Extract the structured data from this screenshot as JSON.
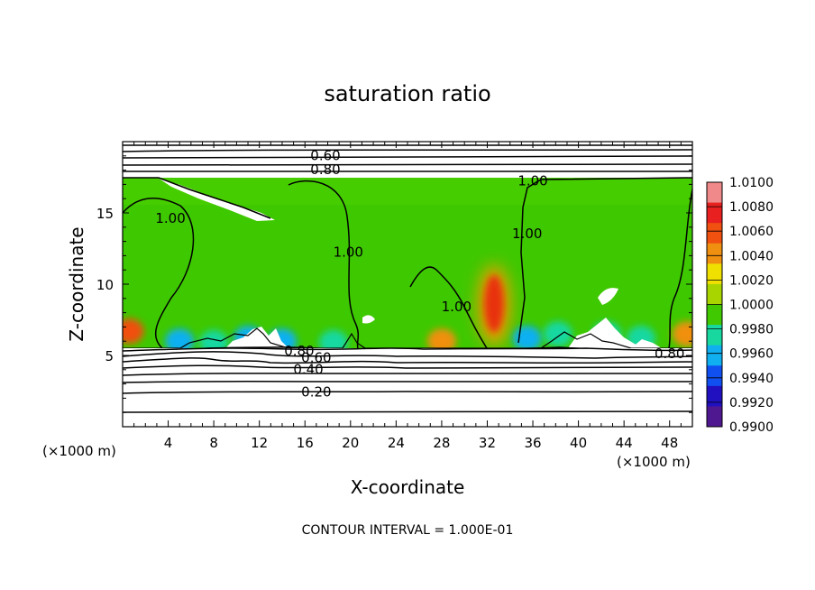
{
  "chart_data": {
    "type": "heatmap",
    "title": "saturation ratio",
    "xlabel": "X-coordinate",
    "ylabel": "Z-coordinate",
    "x_unit": "(×1000 m)",
    "z_unit": "(×1000 m)",
    "xlim": [
      0,
      50
    ],
    "ylim": [
      0,
      20
    ],
    "x_ticks": [
      4,
      8,
      12,
      16,
      20,
      24,
      28,
      32,
      36,
      40,
      44,
      48
    ],
    "y_ticks": [
      5,
      10,
      15
    ],
    "note": "CONTOUR INTERVAL = 1.000E-01",
    "colorbar": {
      "levels": [
        "1.0100",
        "1.0080",
        "1.0060",
        "1.0040",
        "1.0020",
        "1.0000",
        "0.9980",
        "0.9960",
        "0.9940",
        "0.9920",
        "0.9900"
      ],
      "colors": [
        "#f08a8a",
        "#e82020",
        "#f05010",
        "#f09010",
        "#f0e000",
        "#a8d400",
        "#40c800",
        "#18d8a0",
        "#10b0f0",
        "#1050f0",
        "#2010c0",
        "#501890"
      ]
    },
    "contour_labels": [
      {
        "text": "0.60",
        "x": 17.8,
        "y": 19.0
      },
      {
        "text": "0.80",
        "x": 17.8,
        "y": 18.0
      },
      {
        "text": "1.00",
        "x": 36.0,
        "y": 17.2
      },
      {
        "text": "1.00",
        "x": 4.2,
        "y": 14.6
      },
      {
        "text": "1.00",
        "x": 19.8,
        "y": 12.2
      },
      {
        "text": "1.00",
        "x": 35.5,
        "y": 13.5
      },
      {
        "text": "1.00",
        "x": 29.3,
        "y": 8.4
      },
      {
        "text": "0.80",
        "x": 15.5,
        "y": 5.3
      },
      {
        "text": "0.60",
        "x": 17.0,
        "y": 4.8
      },
      {
        "text": "0.40",
        "x": 16.3,
        "y": 4.0
      },
      {
        "text": "0.20",
        "x": 17.0,
        "y": 2.4
      },
      {
        "text": "0.80",
        "x": 48.0,
        "y": 5.1
      }
    ],
    "field_anomalies": [
      {
        "x": 32.6,
        "z": 8.5,
        "value": 1.008
      },
      {
        "x": 0.6,
        "z": 6.7,
        "value": 1.006
      },
      {
        "x": 5.0,
        "z": 6.0,
        "value": 0.994
      },
      {
        "x": 8.0,
        "z": 5.9,
        "value": 0.996
      },
      {
        "x": 11.0,
        "z": 6.2,
        "value": 0.995
      },
      {
        "x": 14.0,
        "z": 6.0,
        "value": 0.995
      },
      {
        "x": 18.5,
        "z": 5.9,
        "value": 0.996
      },
      {
        "x": 35.5,
        "z": 6.2,
        "value": 0.994
      },
      {
        "x": 38.2,
        "z": 6.5,
        "value": 0.996
      },
      {
        "x": 42.5,
        "z": 6.5,
        "value": 0.996
      },
      {
        "x": 45.5,
        "z": 6.2,
        "value": 0.996
      },
      {
        "x": 28.0,
        "z": 6.0,
        "value": 1.004
      },
      {
        "x": 49.5,
        "z": 6.5,
        "value": 1.004
      }
    ]
  }
}
